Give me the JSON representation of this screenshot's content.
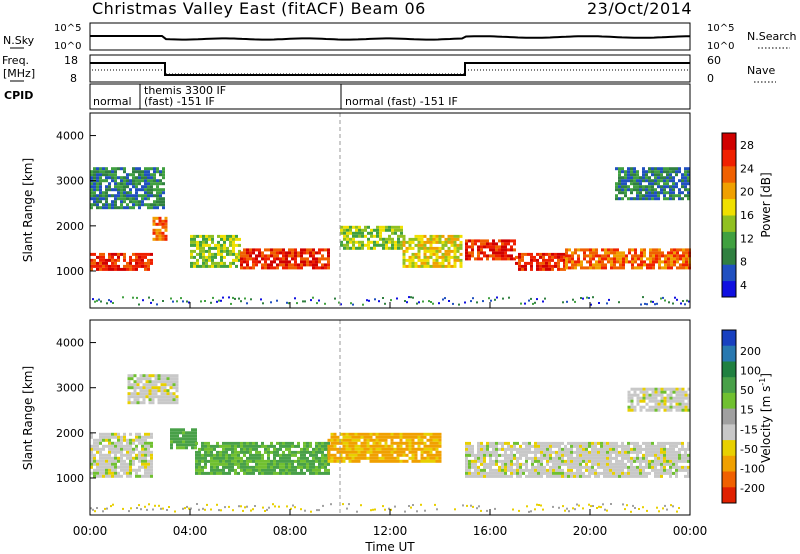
{
  "header": {
    "title": "Christmas Valley East (fitACF)",
    "beam": "Beam 06",
    "date": "23/Oct/2014"
  },
  "panels": {
    "nsky_label": "N.Sky",
    "nsearch_label": "N.Search",
    "freq_label_line1": "Freq.",
    "freq_label_line2": "[MHz]",
    "nave_label": "Nave",
    "cpid_label": "CPID",
    "top_ticks_left": [
      "10^5",
      "10^0"
    ],
    "top_ticks_right": [
      "10^5",
      "10^0"
    ],
    "freq_ticks": [
      "18",
      "8"
    ],
    "nave_ticks": [
      "60",
      "0"
    ],
    "cpid_modes": [
      "normal",
      "themis 3300 IF",
      "(fast) -151 IF",
      "normal (fast) -151 IF"
    ]
  },
  "colorbars": {
    "power": {
      "label": "Power [dB]",
      "ticks": [
        "28",
        "24",
        "20",
        "16",
        "12",
        "8",
        "4"
      ],
      "colors": [
        "#1010e0",
        "#2050c0",
        "#308040",
        "#40a040",
        "#90c020",
        "#f0e000",
        "#f0a000",
        "#f06000",
        "#f02000",
        "#d00000"
      ]
    },
    "velocity": {
      "label": "Velocity [m s",
      "label_sup": "-1",
      "label_end": "]",
      "ticks": [
        "200",
        "100",
        "50",
        "15",
        "-15",
        "-50",
        "-100",
        "-200"
      ],
      "colors": [
        "#1840c0",
        "#2878b0",
        "#208040",
        "#48a048",
        "#70c030",
        "#a0a0a0",
        "#c8c8c8",
        "#e8d000",
        "#f0a000",
        "#f06000",
        "#e02000"
      ]
    }
  },
  "axes": {
    "ylabel": "Slant Range [km]",
    "xlabel": "Time UT",
    "yticks": [
      "4000",
      "3000",
      "2000",
      "1000"
    ],
    "xticks": [
      "00:00",
      "04:00",
      "08:00",
      "12:00",
      "16:00",
      "20:00",
      "00:00"
    ]
  },
  "chart_data": [
    {
      "type": "heatmap",
      "title": "Power",
      "xlabel": "Time UT",
      "ylabel": "Slant Range [km]",
      "ylim": [
        180,
        4500
      ],
      "xlim_hours": [
        0,
        24
      ],
      "zlabel": "Power [dB]",
      "zlim": [
        0,
        30
      ],
      "echo_bands": [
        {
          "t_start": 0.0,
          "t_end": 2.5,
          "range_km": [
            1050,
            1400
          ],
          "power_db": 26
        },
        {
          "t_start": 2.5,
          "t_end": 3.0,
          "range_km": [
            1700,
            2200
          ],
          "power_db": 24
        },
        {
          "t_start": 4.0,
          "t_end": 6.0,
          "range_km": [
            1100,
            1800
          ],
          "power_db": 14
        },
        {
          "t_start": 6.0,
          "t_end": 9.5,
          "range_km": [
            1050,
            1500
          ],
          "power_db": 26
        },
        {
          "t_start": 10.0,
          "t_end": 12.5,
          "range_km": [
            1500,
            2000
          ],
          "power_db": 12
        },
        {
          "t_start": 12.5,
          "t_end": 14.8,
          "range_km": [
            1100,
            1800
          ],
          "power_db": 16
        },
        {
          "t_start": 15.0,
          "t_end": 17.0,
          "range_km": [
            1300,
            1700
          ],
          "power_db": 26
        },
        {
          "t_start": 17.0,
          "t_end": 19.0,
          "range_km": [
            1050,
            1400
          ],
          "power_db": 26
        },
        {
          "t_start": 19.0,
          "t_end": 24.0,
          "range_km": [
            1050,
            1500
          ],
          "power_db": 24
        },
        {
          "t_start": 0.0,
          "t_end": 3.0,
          "range_km": [
            2400,
            3300
          ],
          "power_db": 8
        },
        {
          "t_start": 21.0,
          "t_end": 24.0,
          "range_km": [
            2600,
            3300
          ],
          "power_db": 6
        }
      ]
    },
    {
      "type": "heatmap",
      "title": "Velocity",
      "xlabel": "Time UT",
      "ylabel": "Slant Range [km]",
      "ylim": [
        180,
        4500
      ],
      "xlim_hours": [
        0,
        24
      ],
      "zlabel": "Velocity [m s-1]",
      "zlim": [
        -200,
        200
      ],
      "echo_bands": [
        {
          "t_start": 0.0,
          "t_end": 2.5,
          "range_km": [
            1050,
            2000
          ],
          "velocity": 0
        },
        {
          "t_start": 1.5,
          "t_end": 3.5,
          "range_km": [
            2700,
            3300
          ],
          "velocity": 0
        },
        {
          "t_start": 3.2,
          "t_end": 4.2,
          "range_km": [
            1700,
            2100
          ],
          "velocity": 50
        },
        {
          "t_start": 4.2,
          "t_end": 9.5,
          "range_km": [
            1100,
            1800
          ],
          "velocity": 40
        },
        {
          "t_start": 9.5,
          "t_end": 14.0,
          "range_km": [
            1400,
            2000
          ],
          "velocity": -60
        },
        {
          "t_start": 15.0,
          "t_end": 24.0,
          "range_km": [
            1050,
            1800
          ],
          "velocity": 0
        },
        {
          "t_start": 21.5,
          "t_end": 24.0,
          "range_km": [
            2500,
            3000
          ],
          "velocity": 0
        }
      ]
    }
  ]
}
